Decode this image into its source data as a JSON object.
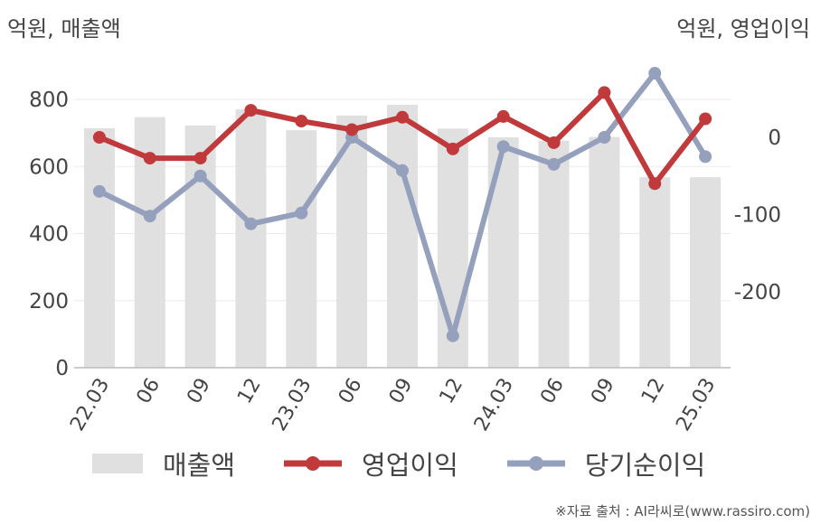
{
  "units": {
    "left": "억원, 매출액",
    "right": "억원, 영업이익"
  },
  "source": "※자료 출처 : AI라씨로(www.rassiro.com)",
  "colors": {
    "bar": "#e0e0e0",
    "operating_profit": "#c0393b",
    "net_income": "#94a0bc",
    "axis": "#bbbbbb",
    "grid": "#ebebeb"
  },
  "chart_data": {
    "type": "bar",
    "categories": [
      "22.03",
      "06",
      "09",
      "12",
      "23.03",
      "06",
      "09",
      "12",
      "24.03",
      "06",
      "09",
      "12",
      "25.03"
    ],
    "left_axis": {
      "ylim": [
        0,
        800
      ],
      "ticks": [
        "0",
        "200",
        "400",
        "600",
        "800"
      ]
    },
    "right_axis": {
      "ylim": [
        -300,
        100
      ],
      "ticks": [
        "0",
        "-100",
        "-200"
      ]
    },
    "series": [
      {
        "name": "매출액",
        "type": "bar",
        "axis": "left",
        "values": [
          714,
          747,
          722,
          770,
          708,
          752,
          784,
          713,
          687,
          677,
          688,
          568,
          568
        ]
      },
      {
        "name": "영업이익",
        "type": "line",
        "axis": "right",
        "values": [
          0,
          -27,
          -27,
          35,
          21,
          10,
          26,
          -15,
          27,
          -7,
          58,
          -60,
          24
        ]
      },
      {
        "name": "당기순이익",
        "type": "line",
        "axis": "right",
        "values": [
          -70,
          -102,
          -50,
          -112,
          -98,
          0,
          -43,
          -257,
          -12,
          -35,
          0,
          83,
          -25
        ]
      }
    ]
  }
}
